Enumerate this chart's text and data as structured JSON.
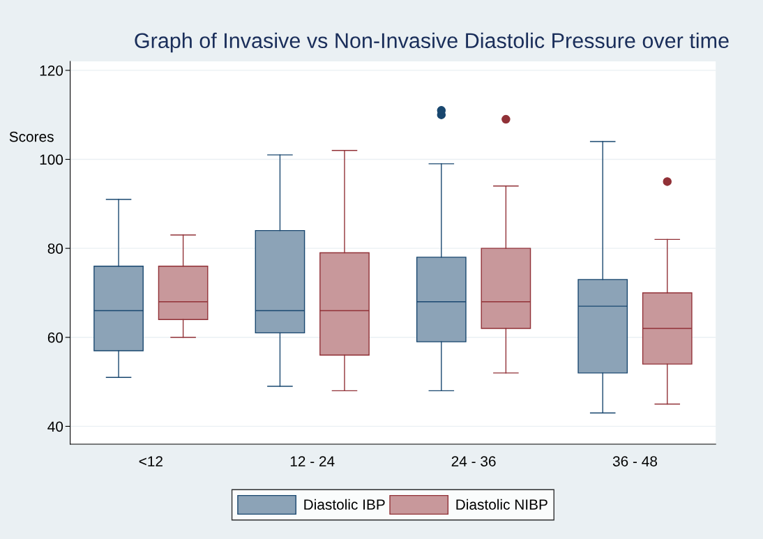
{
  "chart_data": {
    "type": "box",
    "title": "Graph of Invasive vs Non-Invasive Diastolic Pressure over time",
    "ylabel": "Scores",
    "categories": [
      "<12",
      "12 - 24",
      "24 - 36",
      "36 - 48"
    ],
    "series": [
      {
        "name": "Diastolic IBP",
        "color": "#8ca3b7",
        "boxes": [
          {
            "low": 51,
            "q1": 57,
            "median": 66,
            "q3": 76,
            "high": 91
          },
          {
            "low": 49,
            "q1": 61,
            "median": 66,
            "q3": 84,
            "high": 101
          },
          {
            "low": 48,
            "q1": 59,
            "median": 68,
            "q3": 78,
            "high": 99,
            "outliers": [
              110,
              111
            ]
          },
          {
            "low": 43,
            "q1": 52,
            "median": 67,
            "q3": 73,
            "high": 104
          }
        ]
      },
      {
        "name": "Diastolic NIBP",
        "color": "#c8989b",
        "boxes": [
          {
            "low": 60,
            "q1": 64,
            "median": 68,
            "q3": 76,
            "high": 83
          },
          {
            "low": 48,
            "q1": 56,
            "median": 66,
            "q3": 79,
            "high": 102
          },
          {
            "low": 52,
            "q1": 62,
            "median": 68,
            "q3": 80,
            "high": 94,
            "outliers": [
              109
            ]
          },
          {
            "low": 45,
            "q1": 54,
            "median": 62,
            "q3": 70,
            "high": 82,
            "outliers": [
              95
            ]
          }
        ]
      }
    ],
    "ylim": [
      36,
      122
    ],
    "yticks": [
      40,
      60,
      80,
      100,
      120
    ],
    "grid": "y",
    "legend": "bottom"
  }
}
